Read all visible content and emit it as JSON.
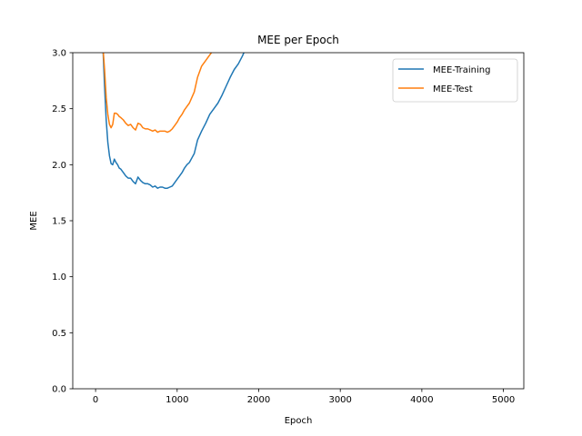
{
  "chart_data": {
    "type": "line",
    "title": "MEE per Epoch",
    "xlabel": "Epoch",
    "ylabel": "MEE",
    "xlim": [
      -280,
      5250
    ],
    "ylim": [
      0,
      3.0
    ],
    "xticks": [
      0,
      1000,
      2000,
      3000,
      4000,
      5000
    ],
    "yticks": [
      0.0,
      0.5,
      1.0,
      1.5,
      2.0,
      2.5,
      3.0
    ],
    "xtick_labels": [
      "0",
      "1000",
      "2000",
      "3000",
      "4000",
      "5000"
    ],
    "ytick_labels": [
      "0.0",
      "0.5",
      "1.0",
      "1.5",
      "2.0",
      "2.5",
      "3.0"
    ],
    "grid": false,
    "legend_position": "top-right",
    "series": [
      {
        "name": "MEE-Training",
        "color": "#1f77b4",
        "x": [
          90,
          110,
          130,
          150,
          170,
          190,
          210,
          230,
          250,
          270,
          290,
          310,
          340,
          370,
          400,
          430,
          460,
          490,
          520,
          550,
          580,
          610,
          640,
          670,
          700,
          730,
          760,
          790,
          820,
          850,
          880,
          910,
          940,
          970,
          1000,
          1030,
          1060,
          1090,
          1120,
          1150,
          1180,
          1210,
          1250,
          1300,
          1350,
          1400,
          1450,
          1500,
          1550,
          1600,
          1650,
          1700,
          1750,
          1800,
          1830
        ],
        "y": [
          3.05,
          2.7,
          2.4,
          2.2,
          2.08,
          2.01,
          2.0,
          2.05,
          2.02,
          2.0,
          1.97,
          1.96,
          1.93,
          1.9,
          1.88,
          1.88,
          1.85,
          1.83,
          1.89,
          1.86,
          1.84,
          1.83,
          1.83,
          1.82,
          1.8,
          1.81,
          1.79,
          1.8,
          1.8,
          1.79,
          1.79,
          1.8,
          1.81,
          1.84,
          1.87,
          1.9,
          1.93,
          1.97,
          2.0,
          2.02,
          2.06,
          2.1,
          2.22,
          2.3,
          2.37,
          2.45,
          2.5,
          2.55,
          2.62,
          2.7,
          2.78,
          2.85,
          2.9,
          2.97,
          3.02
        ]
      },
      {
        "name": "MEE-Test",
        "color": "#ff7f0e",
        "x": [
          90,
          110,
          130,
          150,
          170,
          190,
          210,
          230,
          250,
          270,
          290,
          310,
          340,
          370,
          400,
          430,
          460,
          490,
          520,
          550,
          580,
          610,
          640,
          670,
          700,
          730,
          760,
          790,
          820,
          850,
          880,
          910,
          940,
          970,
          1000,
          1030,
          1060,
          1090,
          1120,
          1150,
          1180,
          1210,
          1250,
          1300,
          1350,
          1400,
          1440
        ],
        "y": [
          3.05,
          2.85,
          2.6,
          2.45,
          2.36,
          2.33,
          2.36,
          2.46,
          2.46,
          2.45,
          2.43,
          2.42,
          2.4,
          2.37,
          2.35,
          2.36,
          2.33,
          2.31,
          2.37,
          2.36,
          2.33,
          2.32,
          2.32,
          2.31,
          2.3,
          2.31,
          2.29,
          2.3,
          2.3,
          2.3,
          2.29,
          2.3,
          2.32,
          2.35,
          2.38,
          2.42,
          2.45,
          2.49,
          2.52,
          2.55,
          2.6,
          2.65,
          2.78,
          2.88,
          2.93,
          2.98,
          3.02
        ]
      }
    ]
  }
}
